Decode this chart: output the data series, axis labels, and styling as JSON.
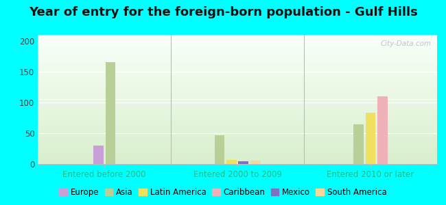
{
  "title": "Year of entry for the foreign-born population - Gulf Hills",
  "title_fontsize": 13,
  "background_color": "#00FFFF",
  "categories": [
    "Entered before 2000",
    "Entered 2000 to 2009",
    "Entered 2010 or later"
  ],
  "bar_order": [
    "Europe",
    "Asia",
    "Latin America",
    "Caribbean",
    "Mexico",
    "South America"
  ],
  "series": {
    "Europe": [
      30,
      0,
      0
    ],
    "Asia": [
      165,
      47,
      65
    ],
    "Latin America": [
      0,
      7,
      83
    ],
    "Caribbean": [
      0,
      0,
      110
    ],
    "Mexico": [
      0,
      5,
      0
    ],
    "South America": [
      0,
      6,
      0
    ]
  },
  "colors": {
    "Europe": "#c8a0d8",
    "Asia": "#b8d098",
    "Latin America": "#f0e060",
    "Caribbean": "#f0b0b8",
    "Mexico": "#8070c0",
    "South America": "#f8d898"
  },
  "ylim": [
    0,
    210
  ],
  "yticks": [
    0,
    50,
    100,
    150,
    200
  ],
  "cat_color": "#22bb88",
  "legend_fontsize": 8.5,
  "watermark": "City-Data.com"
}
